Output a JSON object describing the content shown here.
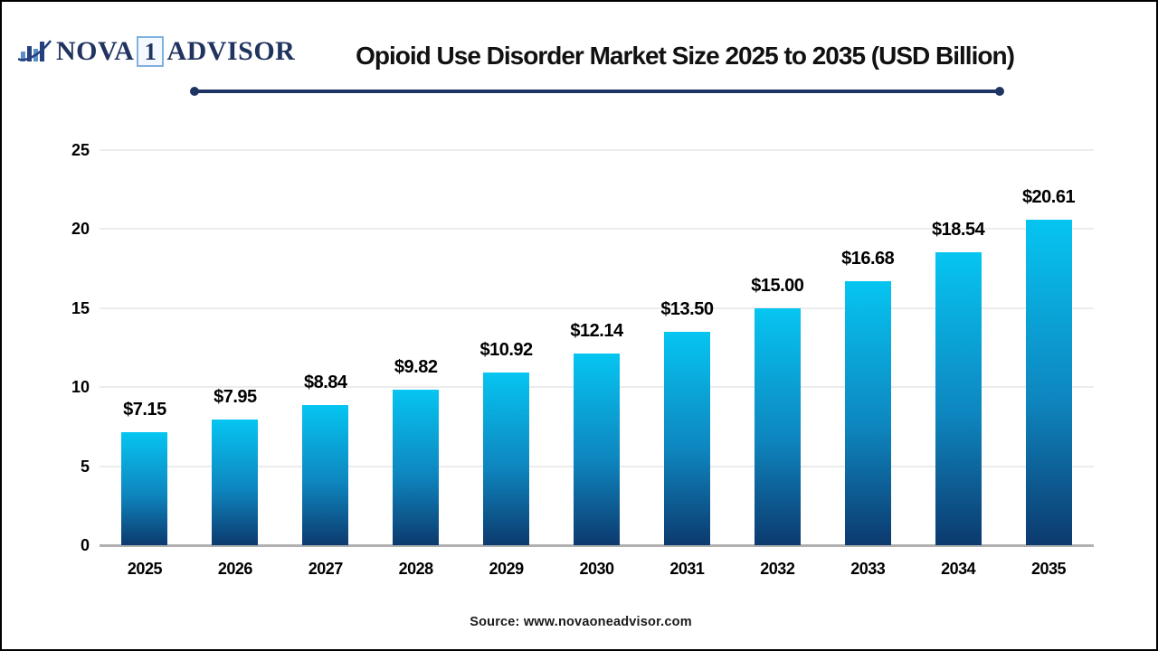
{
  "brand": {
    "name_part1": "NOVA",
    "name_one": "1",
    "name_part2": "ADVISOR",
    "icon": "bar-chart-swoosh-icon",
    "navy": "#21345f",
    "light_blue": "#5b8fc9",
    "box_border": "#7fb2de"
  },
  "header": {
    "underline_color": "#1e3563"
  },
  "chart_data": {
    "type": "bar",
    "title": "Opioid Use Disorder Market Size 2025 to 2035 (USD Billion)",
    "categories": [
      "2025",
      "2026",
      "2027",
      "2028",
      "2029",
      "2030",
      "2031",
      "2032",
      "2033",
      "2034",
      "2035"
    ],
    "values": [
      7.15,
      7.95,
      8.84,
      9.82,
      10.92,
      12.14,
      13.5,
      15.0,
      16.68,
      18.54,
      20.61
    ],
    "value_labels": [
      "$7.15",
      "$7.95",
      "$8.84",
      "$9.82",
      "$10.92",
      "$12.14",
      "$13.50",
      "$15.00",
      "$16.68",
      "$18.54",
      "$20.61"
    ],
    "xlabel": "",
    "ylabel": "",
    "ylim": [
      0,
      25
    ],
    "yticks": [
      0,
      5,
      10,
      15,
      20,
      25
    ],
    "grid": "horizontal-only",
    "legend_position": "none",
    "bar_gradient_top": "#06c5f1",
    "bar_gradient_mid": "#0e86bf",
    "bar_gradient_bottom": "#0c3a6e",
    "gridline_color": "#ececec",
    "axis_color": "#b0b0b0"
  },
  "footer": {
    "source": "Source: www.novaoneadvisor.com"
  }
}
